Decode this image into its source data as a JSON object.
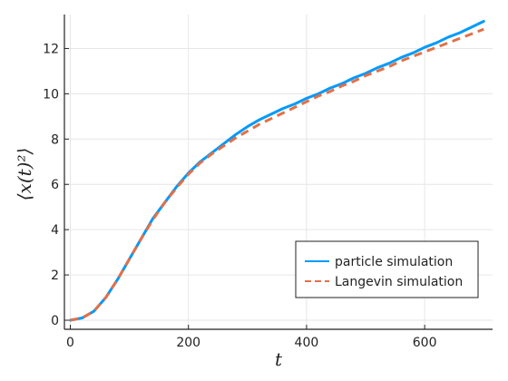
{
  "chart_data": {
    "type": "line",
    "xlabel": "t",
    "ylabel": "⟨x(t)²⟩",
    "xlim": [
      -10,
      715
    ],
    "ylim": [
      -0.4,
      13.5
    ],
    "xticks": [
      "0",
      "200",
      "400",
      "600"
    ],
    "xtick_values": [
      0,
      200,
      400,
      600
    ],
    "yticks": [
      "0",
      "2",
      "4",
      "6",
      "8",
      "10",
      "12"
    ],
    "ytick_values": [
      0,
      2,
      4,
      6,
      8,
      10,
      12
    ],
    "grid": true,
    "legend_position": "bottom-right",
    "series": [
      {
        "name": "particle simulation",
        "style": "solid",
        "color": "#009AFA",
        "x": [
          0,
          20,
          40,
          60,
          80,
          100,
          120,
          140,
          160,
          180,
          200,
          220,
          240,
          260,
          280,
          300,
          320,
          340,
          360,
          380,
          400,
          420,
          440,
          460,
          480,
          500,
          520,
          540,
          560,
          580,
          600,
          620,
          640,
          660,
          680,
          700
        ],
        "y": [
          0.0,
          0.1,
          0.4,
          1.0,
          1.8,
          2.7,
          3.6,
          4.5,
          5.2,
          5.9,
          6.5,
          7.0,
          7.4,
          7.8,
          8.2,
          8.55,
          8.85,
          9.1,
          9.35,
          9.55,
          9.8,
          10.0,
          10.25,
          10.45,
          10.7,
          10.9,
          11.15,
          11.35,
          11.6,
          11.8,
          12.05,
          12.25,
          12.5,
          12.7,
          12.95,
          13.2
        ]
      },
      {
        "name": "Langevin simulation",
        "style": "dashed",
        "color": "#E36F47",
        "x": [
          0,
          20,
          40,
          60,
          80,
          100,
          120,
          140,
          160,
          180,
          200,
          220,
          240,
          260,
          280,
          300,
          320,
          340,
          360,
          380,
          400,
          420,
          440,
          460,
          480,
          500,
          520,
          540,
          560,
          580,
          600,
          620,
          640,
          660,
          680,
          700
        ],
        "y": [
          0.0,
          0.1,
          0.4,
          1.0,
          1.8,
          2.7,
          3.6,
          4.45,
          5.2,
          5.85,
          6.45,
          6.95,
          7.35,
          7.7,
          8.05,
          8.35,
          8.65,
          8.9,
          9.15,
          9.4,
          9.65,
          9.9,
          10.1,
          10.35,
          10.55,
          10.8,
          11.0,
          11.2,
          11.45,
          11.65,
          11.85,
          12.05,
          12.25,
          12.45,
          12.65,
          12.85
        ]
      }
    ]
  }
}
